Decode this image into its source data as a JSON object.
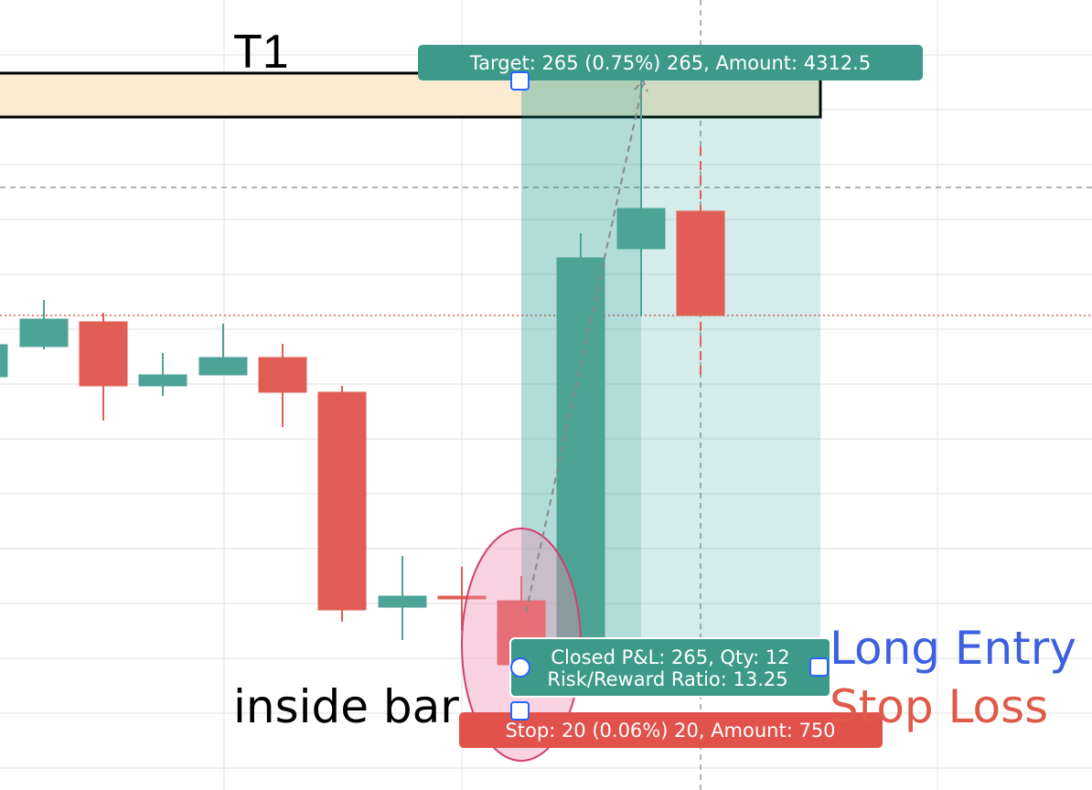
{
  "zone": {
    "label": "T1"
  },
  "position": {
    "target_label": "Target: 265 (0.75%) 265, Amount: 4312.5",
    "closed_label": "Closed P&L: 265, Qty: 12",
    "ratio_label": "Risk/Reward Ratio: 13.25",
    "stop_label": "Stop: 20 (0.06%) 20, Amount: 750"
  },
  "annotations": {
    "inside_bar": "inside bar",
    "long_entry": "Long Entry",
    "stop_loss": "Stop Loss"
  }
}
